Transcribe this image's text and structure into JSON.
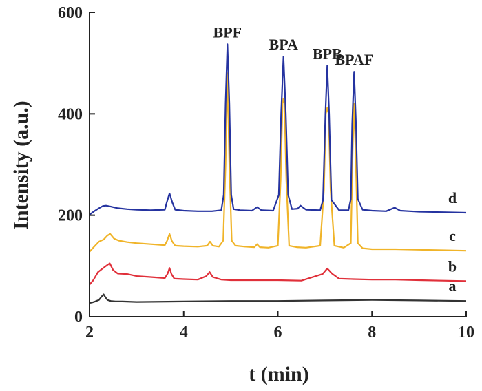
{
  "chart_data": {
    "type": "line",
    "title": "",
    "xlabel": "t (min)",
    "ylabel": "Intensity (a.u.)",
    "xlim": [
      2,
      10
    ],
    "ylim": [
      0,
      600
    ],
    "xticks": [
      2,
      4,
      6,
      8,
      10
    ],
    "yticks": [
      0,
      200,
      400,
      600
    ],
    "peak_labels": [
      {
        "text": "BPF",
        "x": 4.93,
        "y": 537
      },
      {
        "text": "BPA",
        "x": 6.12,
        "y": 513
      },
      {
        "text": "BPB",
        "x": 7.05,
        "y": 495
      },
      {
        "text": "BPAF",
        "x": 7.62,
        "y": 483
      }
    ],
    "series": [
      {
        "name": "a",
        "color": "#333333",
        "x": [
          2.0,
          2.05,
          2.12,
          2.2,
          2.26,
          2.3,
          2.34,
          2.38,
          2.45,
          2.55,
          2.7,
          3.0,
          4.0,
          5.0,
          6.0,
          7.0,
          8.0,
          9.0,
          10.0
        ],
        "y": [
          27,
          28,
          30,
          33,
          40,
          44,
          38,
          33,
          31,
          30,
          30,
          29,
          30,
          31,
          31,
          32,
          33,
          32,
          31
        ]
      },
      {
        "name": "b",
        "color": "#e0303a",
        "x": [
          2.0,
          2.08,
          2.18,
          2.28,
          2.38,
          2.43,
          2.5,
          2.6,
          2.8,
          3.0,
          3.3,
          3.6,
          3.66,
          3.7,
          3.74,
          3.8,
          4.0,
          4.3,
          4.48,
          4.55,
          4.62,
          4.8,
          5.0,
          5.5,
          6.0,
          6.5,
          6.95,
          7.05,
          7.15,
          7.3,
          7.6,
          8.0,
          8.5,
          9.0,
          9.5,
          10.0
        ],
        "y": [
          63,
          72,
          88,
          95,
          102,
          105,
          92,
          85,
          84,
          80,
          78,
          76,
          85,
          96,
          84,
          75,
          74,
          73,
          80,
          88,
          78,
          73,
          72,
          72,
          72,
          71,
          84,
          95,
          85,
          75,
          74,
          73,
          73,
          72,
          71,
          70
        ]
      },
      {
        "name": "c",
        "color": "#f0b429",
        "x": [
          2.0,
          2.1,
          2.2,
          2.3,
          2.38,
          2.44,
          2.52,
          2.62,
          2.8,
          3.0,
          3.3,
          3.6,
          3.65,
          3.7,
          3.75,
          3.82,
          4.0,
          4.3,
          4.5,
          4.56,
          4.62,
          4.75,
          4.84,
          4.89,
          4.93,
          4.97,
          5.02,
          5.1,
          5.3,
          5.5,
          5.56,
          5.62,
          5.8,
          6.0,
          6.06,
          6.1,
          6.12,
          6.14,
          6.18,
          6.24,
          6.4,
          6.6,
          6.9,
          6.98,
          7.02,
          7.05,
          7.08,
          7.12,
          7.2,
          7.4,
          7.55,
          7.59,
          7.62,
          7.65,
          7.7,
          7.8,
          8.0,
          8.5,
          9.0,
          9.5,
          10.0
        ],
        "y": [
          128,
          138,
          148,
          152,
          160,
          163,
          154,
          150,
          147,
          145,
          143,
          141,
          150,
          163,
          149,
          140,
          139,
          138,
          140,
          148,
          140,
          138,
          150,
          300,
          480,
          300,
          150,
          140,
          138,
          137,
          143,
          137,
          136,
          140,
          270,
          420,
          430,
          420,
          270,
          140,
          137,
          136,
          140,
          250,
          400,
          412,
          400,
          250,
          140,
          136,
          145,
          330,
          420,
          330,
          145,
          135,
          133,
          133,
          132,
          131,
          130
        ]
      },
      {
        "name": "d",
        "color": "#2533a0",
        "x": [
          2.0,
          2.1,
          2.2,
          2.28,
          2.35,
          2.45,
          2.6,
          2.8,
          3.0,
          3.3,
          3.6,
          3.64,
          3.7,
          3.76,
          3.82,
          4.0,
          4.3,
          4.6,
          4.8,
          4.85,
          4.89,
          4.93,
          4.97,
          5.01,
          5.06,
          5.2,
          5.45,
          5.56,
          5.65,
          5.9,
          6.02,
          6.07,
          6.12,
          6.17,
          6.22,
          6.3,
          6.42,
          6.48,
          6.6,
          6.9,
          6.96,
          7.01,
          7.05,
          7.09,
          7.14,
          7.3,
          7.5,
          7.55,
          7.58,
          7.62,
          7.66,
          7.7,
          7.8,
          8.0,
          8.3,
          8.48,
          8.6,
          8.8,
          9.0,
          9.5,
          10.0
        ],
        "y": [
          201,
          208,
          214,
          218,
          219,
          217,
          214,
          212,
          211,
          210,
          211,
          225,
          243,
          225,
          211,
          209,
          208,
          208,
          210,
          240,
          420,
          537,
          420,
          240,
          212,
          210,
          209,
          216,
          210,
          209,
          240,
          400,
          513,
          400,
          240,
          212,
          213,
          219,
          211,
          210,
          230,
          400,
          495,
          400,
          230,
          210,
          210,
          232,
          380,
          483,
          380,
          232,
          211,
          209,
          208,
          215,
          209,
          208,
          207,
          206,
          205
        ]
      }
    ]
  }
}
